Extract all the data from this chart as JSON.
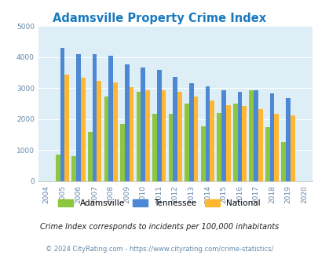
{
  "title": "Adamsville Property Crime Index",
  "years": [
    2004,
    2005,
    2006,
    2007,
    2008,
    2009,
    2010,
    2011,
    2012,
    2013,
    2014,
    2015,
    2016,
    2017,
    2018,
    2019,
    2020
  ],
  "adamsville": [
    null,
    850,
    820,
    1600,
    2720,
    1850,
    2880,
    2180,
    2180,
    2510,
    1760,
    2200,
    2510,
    2920,
    1750,
    1270,
    null
  ],
  "tennessee": [
    null,
    4300,
    4100,
    4080,
    4040,
    3760,
    3660,
    3590,
    3360,
    3160,
    3060,
    2940,
    2870,
    2920,
    2820,
    2680,
    null
  ],
  "national": [
    null,
    3440,
    3330,
    3230,
    3190,
    3040,
    2940,
    2930,
    2870,
    2720,
    2590,
    2460,
    2420,
    2320,
    2160,
    2120,
    null
  ],
  "adamsville_color": "#8dc63f",
  "tennessee_color": "#4d88d4",
  "national_color": "#ffb733",
  "bg_color": "#ddeef6",
  "ylim": [
    0,
    5000
  ],
  "yticks": [
    0,
    1000,
    2000,
    3000,
    4000,
    5000
  ],
  "subtitle": "Crime Index corresponds to incidents per 100,000 inhabitants",
  "footer": "© 2024 CityRating.com - https://www.cityrating.com/crime-statistics/",
  "title_color": "#1a7abf",
  "subtitle_color": "#222222",
  "footer_color": "#6688aa"
}
